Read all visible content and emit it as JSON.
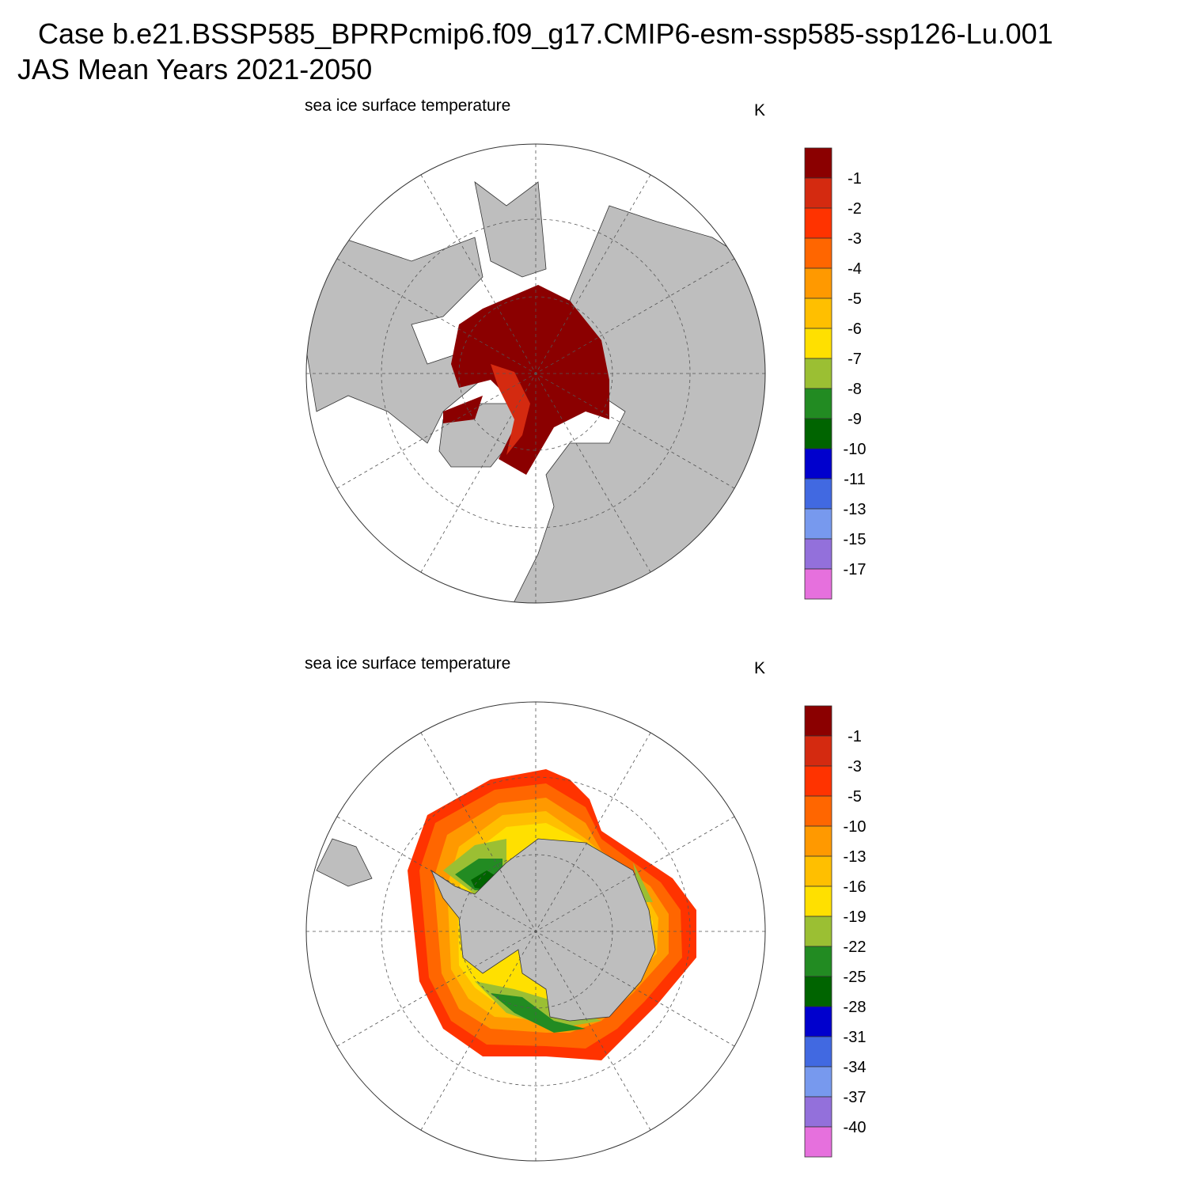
{
  "header": {
    "title_line1": "Case b.e21.BSSP585_BPRPcmip6.f09_g17.CMIP6-esm-ssp585-ssp126-Lu.001",
    "title_line2": "JAS Mean   Years 2021-2050"
  },
  "panels": [
    {
      "title": "sea ice surface temperature",
      "units": "K",
      "colorbar": {
        "labels": [
          -1,
          -2,
          -3,
          -4,
          -5,
          -6,
          -7,
          -8,
          -9,
          -10,
          -11,
          -13,
          -15,
          -17
        ],
        "colors": [
          "#8b0000",
          "#d42a10",
          "#ff3300",
          "#ff6600",
          "#ff9900",
          "#ffbf00",
          "#ffe000",
          "#9bbf33",
          "#228b22",
          "#006400",
          "#0000cd",
          "#4169e1",
          "#7799ee",
          "#9370db",
          "#e670dd"
        ]
      }
    },
    {
      "title": "sea ice surface temperature",
      "units": "K",
      "colorbar": {
        "labels": [
          -1,
          -3,
          -5,
          -10,
          -13,
          -16,
          -19,
          -22,
          -25,
          -28,
          -31,
          -34,
          -37,
          -40
        ],
        "colors": [
          "#8b0000",
          "#d42a10",
          "#ff3300",
          "#ff6600",
          "#ff9900",
          "#ffbf00",
          "#ffe000",
          "#9bbf33",
          "#228b22",
          "#006400",
          "#0000cd",
          "#4169e1",
          "#7799ee",
          "#9370db",
          "#e670dd"
        ]
      }
    }
  ]
}
